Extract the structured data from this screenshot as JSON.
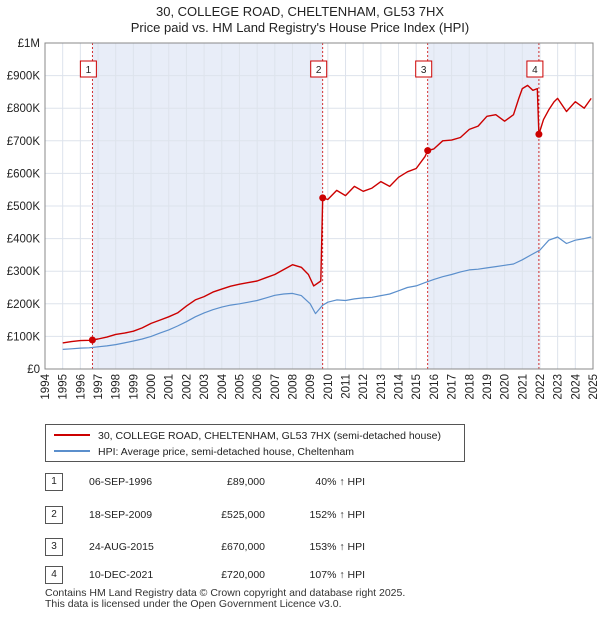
{
  "title": {
    "line1": "30, COLLEGE ROAD, CHELTENHAM, GL53 7HX",
    "line2": "Price paid vs. HM Land Registry's House Price Index (HPI)"
  },
  "legend": {
    "property_label": "30, COLLEGE ROAD, CHELTENHAM, GL53 7HX (semi-detached house)",
    "hpi_label": "HPI: Average price, semi-detached house, Cheltenham"
  },
  "colors": {
    "property": "#cc0000",
    "hpi": "#5b8fcc",
    "shade": "#e8edf8",
    "vline": "#cc0000"
  },
  "transactions": [
    {
      "num": "1",
      "date": "06-SEP-1996",
      "price": "£89,000",
      "hpi": "40% ↑ HPI"
    },
    {
      "num": "2",
      "date": "18-SEP-2009",
      "price": "£525,000",
      "hpi": "152% ↑ HPI"
    },
    {
      "num": "3",
      "date": "24-AUG-2015",
      "price": "£670,000",
      "hpi": "153% ↑ HPI"
    },
    {
      "num": "4",
      "date": "10-DEC-2021",
      "price": "£720,000",
      "hpi": "107% ↑ HPI"
    }
  ],
  "footer": {
    "line1": "Contains HM Land Registry data © Crown copyright and database right 2025.",
    "line2": "This data is licensed under the Open Government Licence v3.0."
  },
  "chart_data": {
    "type": "line",
    "title": "30, COLLEGE ROAD, CHELTENHAM, GL53 7HX — Price paid vs. HM Land Registry's House Price Index (HPI)",
    "xlim": [
      1994,
      2025
    ],
    "ylim": [
      0,
      1000000
    ],
    "x_ticks": [
      1994,
      1995,
      1996,
      1997,
      1998,
      1999,
      2000,
      2001,
      2002,
      2003,
      2004,
      2005,
      2006,
      2007,
      2008,
      2009,
      2010,
      2011,
      2012,
      2013,
      2014,
      2015,
      2016,
      2017,
      2018,
      2019,
      2020,
      2021,
      2022,
      2023,
      2024,
      2025
    ],
    "y_ticks": [
      {
        "value": 0,
        "label": "£0"
      },
      {
        "value": 100000,
        "label": "£100K"
      },
      {
        "value": 200000,
        "label": "£200K"
      },
      {
        "value": 300000,
        "label": "£300K"
      },
      {
        "value": 400000,
        "label": "£400K"
      },
      {
        "value": 500000,
        "label": "£500K"
      },
      {
        "value": 600000,
        "label": "£600K"
      },
      {
        "value": 700000,
        "label": "£700K"
      },
      {
        "value": 800000,
        "label": "£800K"
      },
      {
        "value": 900000,
        "label": "£900K"
      },
      {
        "value": 1000000,
        "label": "£1M"
      }
    ],
    "grid": true,
    "shaded_periods": [
      [
        1996.68,
        2009.71
      ],
      [
        2015.65,
        2021.94
      ]
    ],
    "sales": [
      {
        "label": "1",
        "x": 1996.68,
        "y": 89000
      },
      {
        "label": "2",
        "x": 2009.71,
        "y": 525000
      },
      {
        "label": "3",
        "x": 2015.65,
        "y": 670000
      },
      {
        "label": "4",
        "x": 2021.94,
        "y": 720000
      }
    ],
    "series": [
      {
        "name": "30, COLLEGE ROAD, CHELTENHAM, GL53 7HX (semi-detached house)",
        "x": [
          1995.0,
          1995.5,
          1996.0,
          1996.5,
          1996.68,
          1997.0,
          1997.5,
          1998.0,
          1998.5,
          1999.0,
          1999.5,
          2000.0,
          2000.5,
          2001.0,
          2001.5,
          2002.0,
          2002.5,
          2003.0,
          2003.5,
          2004.0,
          2004.5,
          2005.0,
          2005.5,
          2006.0,
          2006.5,
          2007.0,
          2007.5,
          2008.0,
          2008.5,
          2008.9,
          2009.2,
          2009.6,
          2009.71,
          2010.0,
          2010.5,
          2011.0,
          2011.5,
          2012.0,
          2012.5,
          2013.0,
          2013.5,
          2014.0,
          2014.5,
          2015.0,
          2015.5,
          2015.65,
          2016.0,
          2016.5,
          2017.0,
          2017.5,
          2018.0,
          2018.5,
          2019.0,
          2019.5,
          2020.0,
          2020.5,
          2020.8,
          2021.0,
          2021.3,
          2021.6,
          2021.85,
          2021.94,
          2022.2,
          2022.5,
          2022.8,
          2023.0,
          2023.5,
          2024.0,
          2024.5,
          2024.9
        ],
        "y": [
          80000,
          84000,
          87000,
          88000,
          89000,
          92000,
          98000,
          106000,
          110000,
          116000,
          126000,
          140000,
          150000,
          160000,
          172000,
          193000,
          212000,
          222000,
          236000,
          245000,
          254000,
          260000,
          265000,
          270000,
          280000,
          290000,
          305000,
          320000,
          312000,
          290000,
          255000,
          270000,
          525000,
          520000,
          548000,
          532000,
          560000,
          545000,
          555000,
          575000,
          560000,
          588000,
          605000,
          615000,
          652000,
          670000,
          675000,
          700000,
          702000,
          710000,
          735000,
          745000,
          775000,
          780000,
          760000,
          780000,
          830000,
          860000,
          870000,
          855000,
          860000,
          720000,
          765000,
          795000,
          820000,
          830000,
          790000,
          820000,
          800000,
          830000
        ]
      },
      {
        "name": "HPI: Average price, semi-detached house, Cheltenham",
        "x": [
          1995.0,
          1995.5,
          1996.0,
          1996.5,
          1997.0,
          1997.5,
          1998.0,
          1998.5,
          1999.0,
          1999.5,
          2000.0,
          2000.5,
          2001.0,
          2001.5,
          2002.0,
          2002.5,
          2003.0,
          2003.5,
          2004.0,
          2004.5,
          2005.0,
          2005.5,
          2006.0,
          2006.5,
          2007.0,
          2007.5,
          2008.0,
          2008.5,
          2009.0,
          2009.3,
          2009.7,
          2010.0,
          2010.5,
          2011.0,
          2011.5,
          2012.0,
          2012.5,
          2013.0,
          2013.5,
          2014.0,
          2014.5,
          2015.0,
          2015.5,
          2016.0,
          2016.5,
          2017.0,
          2017.5,
          2018.0,
          2018.5,
          2019.0,
          2019.5,
          2020.0,
          2020.5,
          2021.0,
          2021.5,
          2022.0,
          2022.5,
          2023.0,
          2023.5,
          2024.0,
          2024.5,
          2024.9
        ],
        "y": [
          60000,
          62000,
          64000,
          65000,
          68000,
          71000,
          75000,
          80000,
          86000,
          92000,
          100000,
          110000,
          120000,
          132000,
          145000,
          160000,
          172000,
          182000,
          190000,
          196000,
          200000,
          205000,
          210000,
          218000,
          226000,
          230000,
          232000,
          225000,
          200000,
          170000,
          195000,
          205000,
          212000,
          210000,
          215000,
          218000,
          220000,
          225000,
          230000,
          240000,
          250000,
          255000,
          265000,
          275000,
          283000,
          290000,
          298000,
          304000,
          306000,
          310000,
          314000,
          318000,
          322000,
          335000,
          350000,
          365000,
          395000,
          405000,
          385000,
          395000,
          400000,
          405000
        ]
      }
    ]
  }
}
